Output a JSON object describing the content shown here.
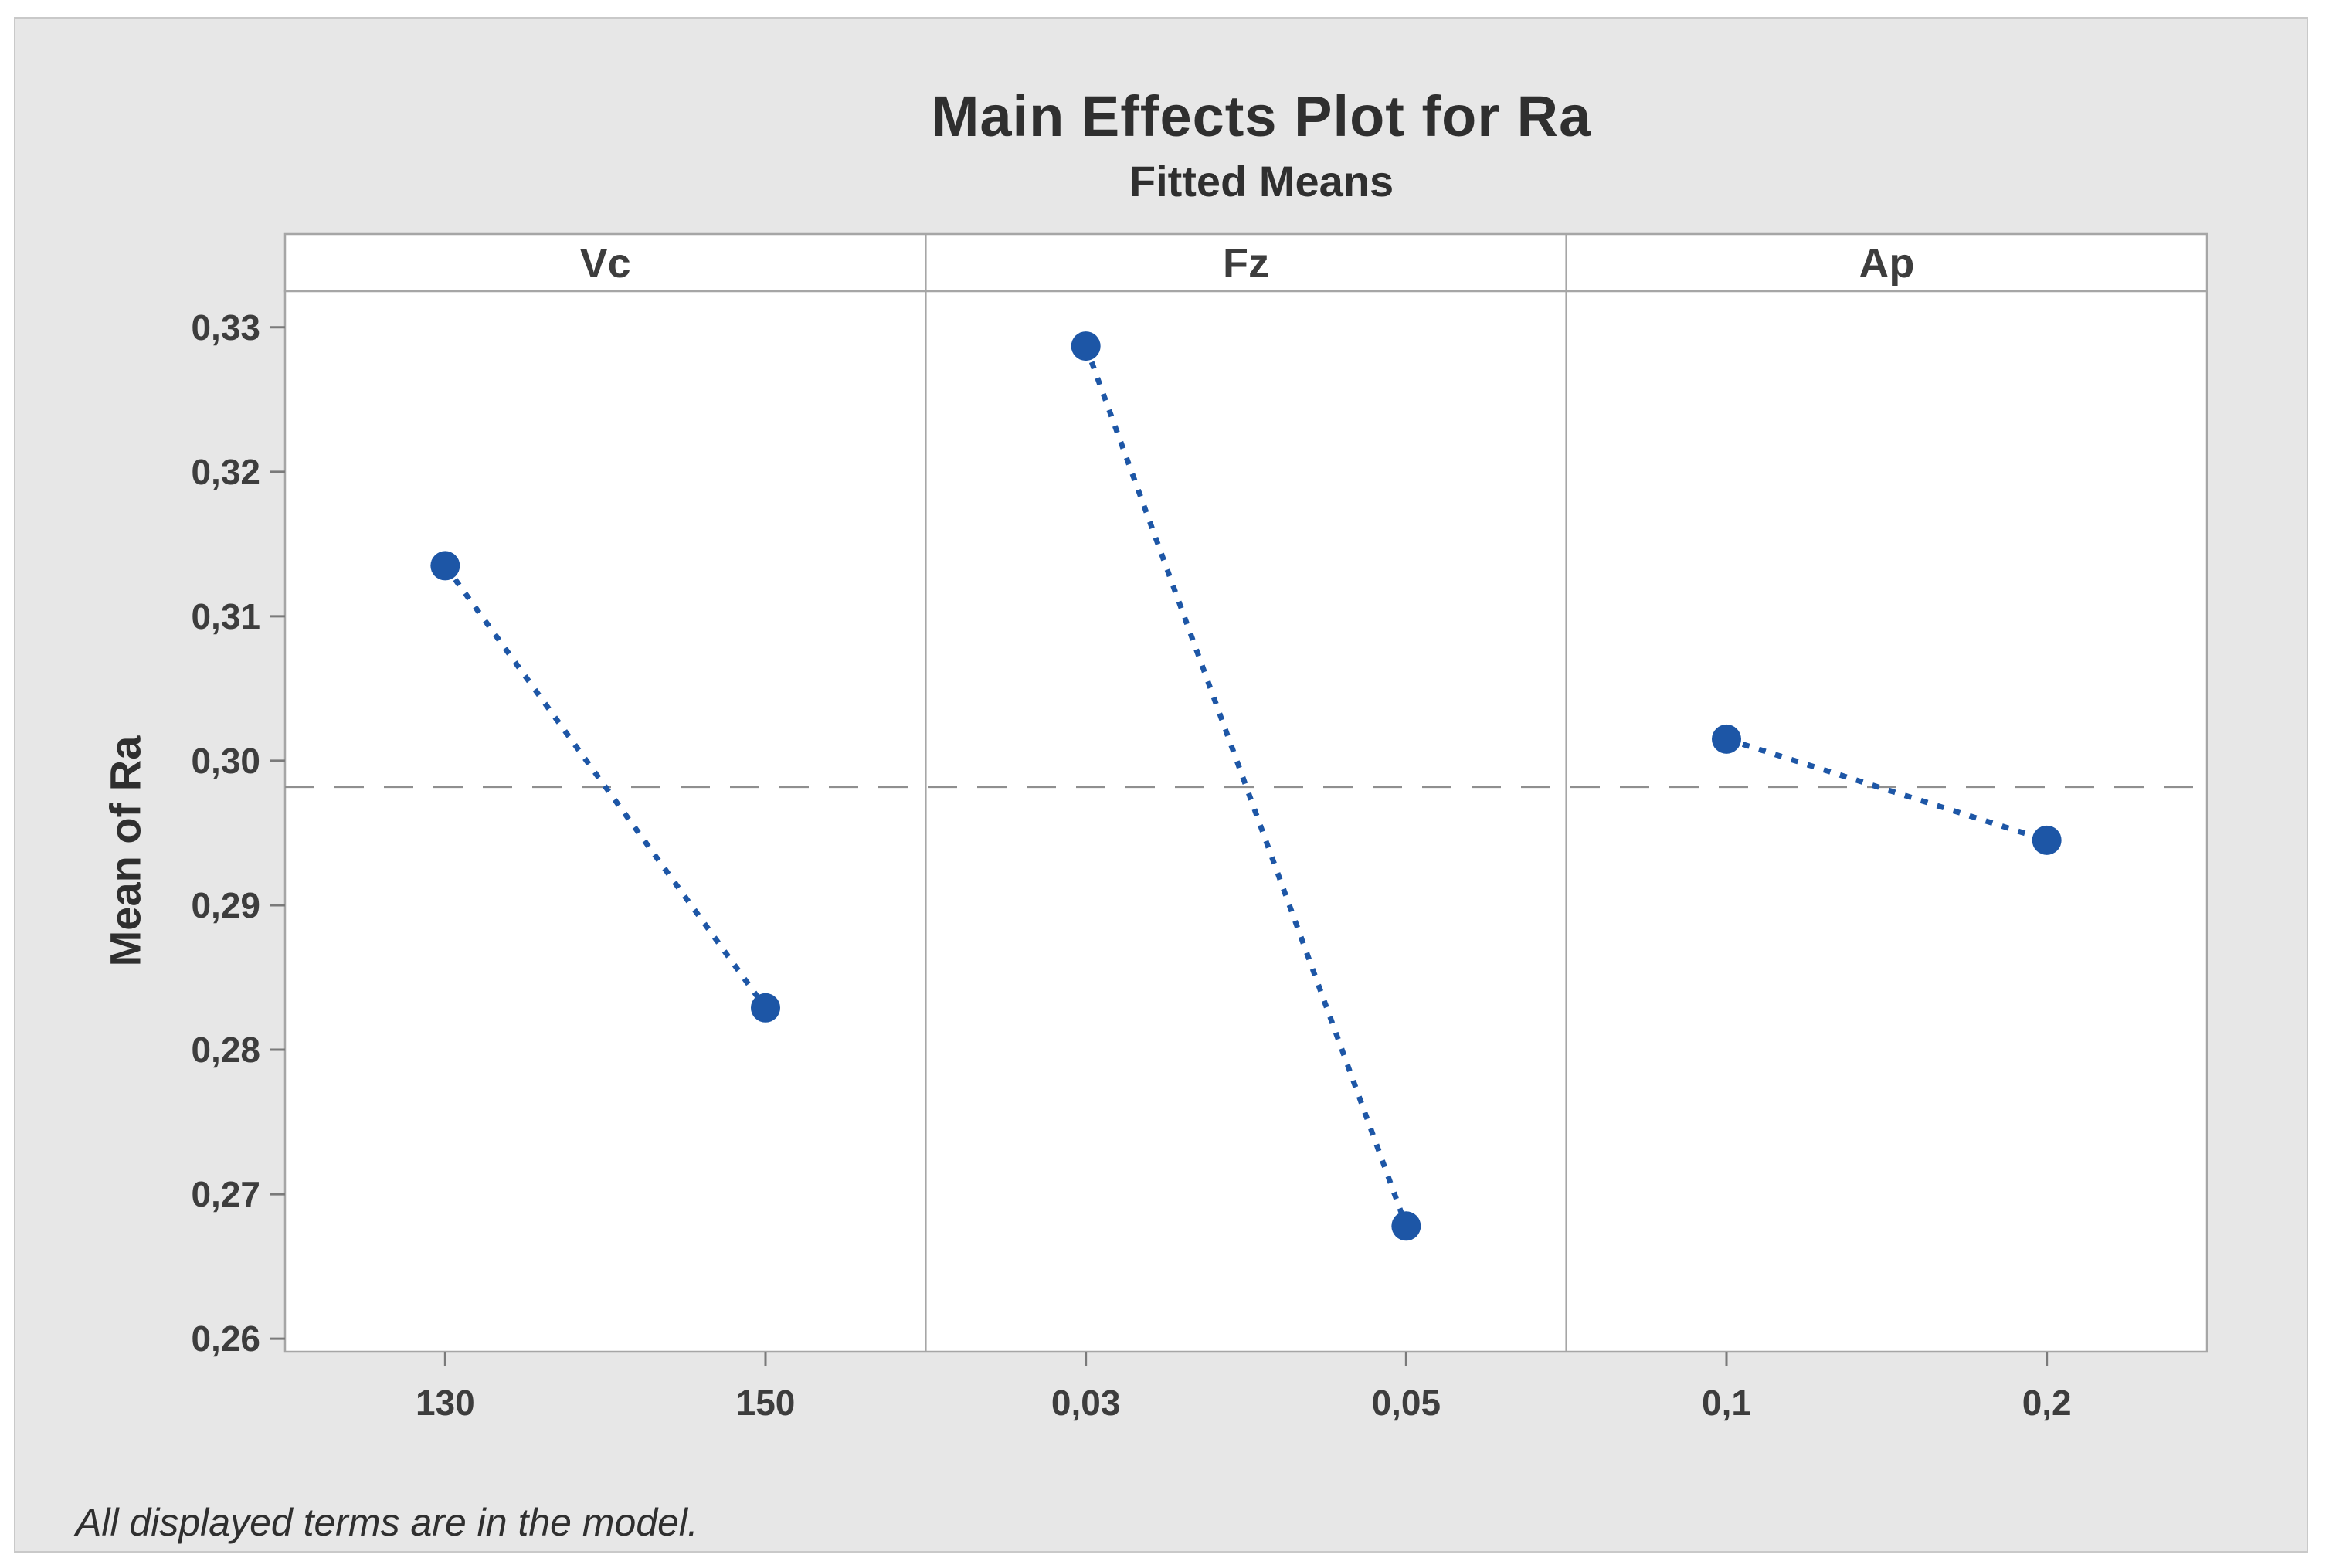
{
  "header": {
    "title": "Main Effects Plot for Ra",
    "subtitle": "Fitted Means"
  },
  "footnote": "All displayed terms are in the model.",
  "chart_data": {
    "type": "line",
    "title": "Main Effects Plot for Ra",
    "subtitle": "Fitted Means",
    "ylabel": "Mean of Ra",
    "xlabel": "",
    "legend": "none",
    "grid": false,
    "decimal_separator": ",",
    "panels": [
      {
        "label": "Vc",
        "categories": [
          "130",
          "150"
        ],
        "values": [
          0.3135,
          0.2829
        ]
      },
      {
        "label": "Fz",
        "categories": [
          "0,03",
          "0,05"
        ],
        "values": [
          0.3287,
          0.2678
        ]
      },
      {
        "label": "Ap",
        "categories": [
          "0,1",
          "0,2"
        ],
        "values": [
          0.3015,
          0.2945
        ]
      }
    ],
    "reference_line": 0.2982,
    "reference_line_meaning": "overall fitted mean",
    "ylim": [
      0.2591,
      0.3325
    ],
    "yticks": [
      {
        "value": 0.26,
        "label": "0,26"
      },
      {
        "value": 0.27,
        "label": "0,27"
      },
      {
        "value": 0.28,
        "label": "0,28"
      },
      {
        "value": 0.29,
        "label": "0,29"
      },
      {
        "value": 0.3,
        "label": "0,30"
      },
      {
        "value": 0.31,
        "label": "0,31"
      },
      {
        "value": 0.32,
        "label": "0,32"
      },
      {
        "value": 0.33,
        "label": "0,33"
      }
    ]
  },
  "style": {
    "graph_background": "#e7e7e7",
    "plot_background": "#ffffff",
    "panel_border": "#a6a6a6",
    "series_color": "#1d56a6",
    "reference_color": "#8f8f8f",
    "tick_color": "#7a7a7a",
    "text_color": "#2f2f2f",
    "tick_text_color": "#3d3d3d"
  }
}
